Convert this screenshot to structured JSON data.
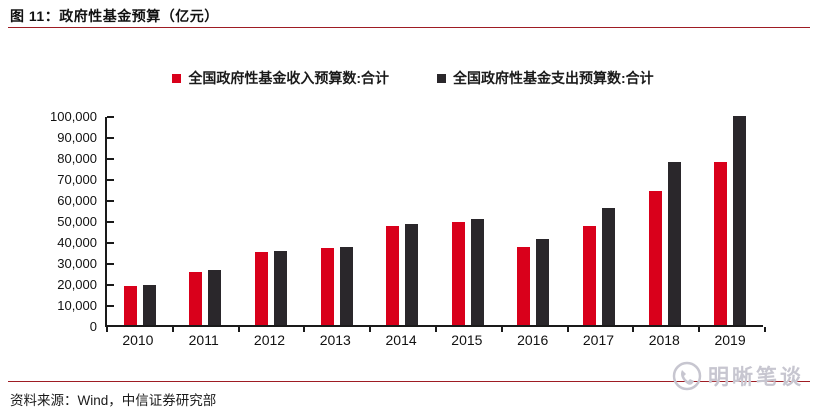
{
  "figure": {
    "title": "图 11：政府性基金预算（亿元）",
    "source": "资料来源：Wind，中信证券研究部",
    "watermark": "明晰笔谈"
  },
  "colors": {
    "revenue_bar": "#d9001b",
    "expenditure_bar": "#2a272b",
    "divider_line": "#9e1c23",
    "axis_line": "#1a1a1a"
  },
  "chart_data": {
    "type": "bar",
    "title": "",
    "xlabel": "",
    "ylabel": "",
    "categories": [
      "2010",
      "2011",
      "2012",
      "2013",
      "2014",
      "2015",
      "2016",
      "2017",
      "2018",
      "2019"
    ],
    "series": [
      {
        "name": "全国政府性基金收入预算数:合计",
        "color": "#d9001b",
        "values": [
          18400,
          25400,
          34900,
          36700,
          47200,
          49200,
          37300,
          47300,
          63800,
          77800
        ]
      },
      {
        "name": "全国政府性基金支出预算数:合计",
        "color": "#2a272b",
        "values": [
          18900,
          26300,
          35400,
          37200,
          48200,
          50600,
          41000,
          55500,
          77400,
          99400
        ]
      }
    ],
    "ylim": [
      0,
      100000
    ],
    "ytick_step": 10000,
    "ytick_labels": [
      "0",
      "10,000",
      "20,000",
      "30,000",
      "40,000",
      "50,000",
      "60,000",
      "70,000",
      "80,000",
      "90,000",
      "100,000"
    ],
    "grid": false,
    "legend_position": "top-center"
  }
}
